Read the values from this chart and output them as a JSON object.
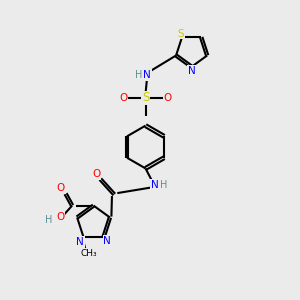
{
  "background_color": "#ebebeb",
  "atom_colors": {
    "C": "#000000",
    "H": "#5f8f8f",
    "N": "#0000ff",
    "O": "#ff0000",
    "S": "#cccc00"
  },
  "figsize": [
    3.0,
    3.0
  ],
  "dpi": 100
}
